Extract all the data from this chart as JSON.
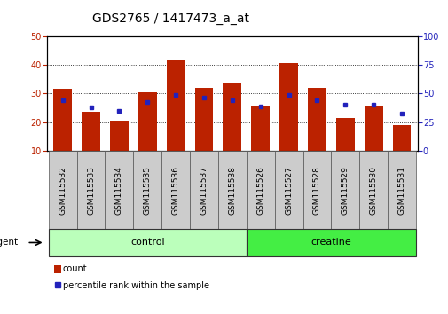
{
  "title": "GDS2765 / 1417473_a_at",
  "categories": [
    "GSM115532",
    "GSM115533",
    "GSM115534",
    "GSM115535",
    "GSM115536",
    "GSM115537",
    "GSM115538",
    "GSM115526",
    "GSM115527",
    "GSM115528",
    "GSM115529",
    "GSM115530",
    "GSM115531"
  ],
  "count_values": [
    31.5,
    23.5,
    20.5,
    30.5,
    41.5,
    32.0,
    33.5,
    25.5,
    40.5,
    32.0,
    21.5,
    25.5,
    19.0
  ],
  "percentile_values": [
    27.5,
    25.0,
    24.0,
    27.0,
    29.5,
    28.5,
    27.5,
    25.5,
    29.5,
    27.5,
    26.0,
    26.0,
    23.0
  ],
  "bar_bottom": 10,
  "ylim_left": [
    10,
    50
  ],
  "ylim_right": [
    0,
    100
  ],
  "yticks_left": [
    10,
    20,
    30,
    40,
    50
  ],
  "yticks_right": [
    0,
    25,
    50,
    75,
    100
  ],
  "bar_color": "#bb2200",
  "dot_color": "#2222bb",
  "group_labels": [
    "control",
    "creatine"
  ],
  "group_ranges": [
    [
      0,
      6
    ],
    [
      7,
      12
    ]
  ],
  "group_colors": [
    "#bbffbb",
    "#44ee44"
  ],
  "agent_label": "agent",
  "bar_width": 0.65,
  "tick_label_fontsize": 6.5,
  "title_fontsize": 10,
  "legend_count_label": "count",
  "legend_pct_label": "percentile rank within the sample",
  "background_color": "#ffffff",
  "plot_bg_color": "#ffffff",
  "tick_area_color": "#cccccc"
}
